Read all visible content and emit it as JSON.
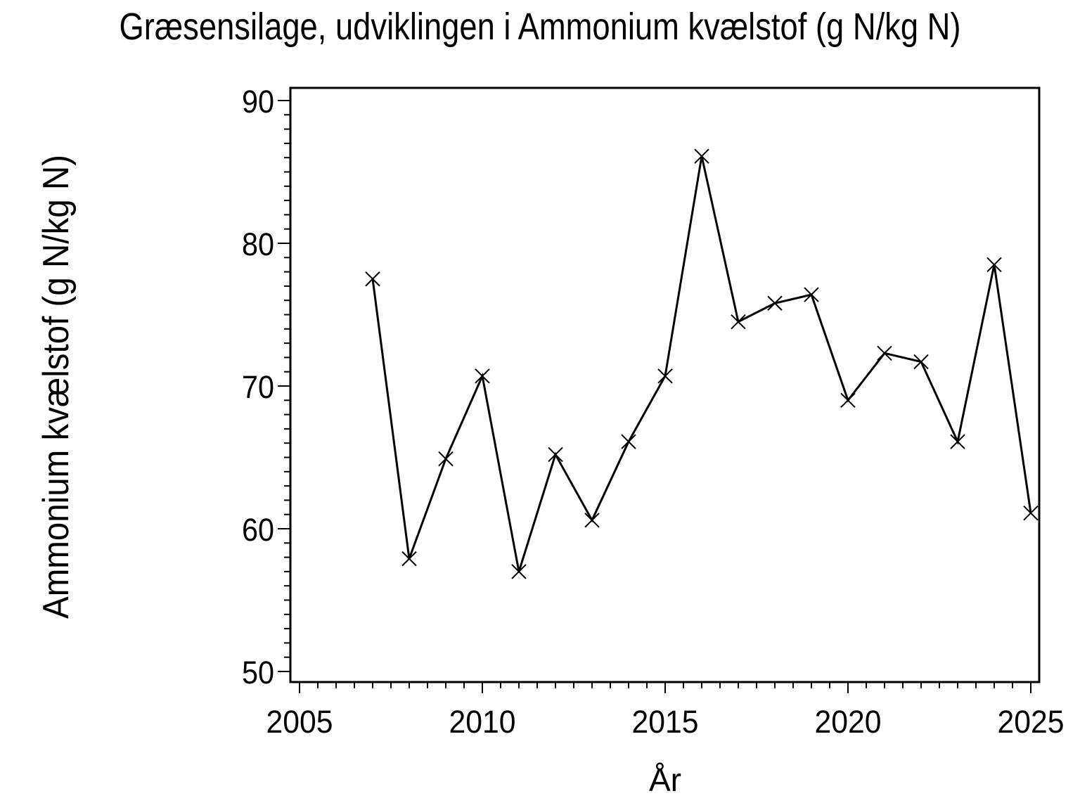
{
  "chart_data": {
    "type": "line",
    "title": "Græsensilage, udviklingen i Ammonium kvælstof (g N/kg N)",
    "xlabel": "År",
    "ylabel": "Ammonium kvælstof (g N/kg N)",
    "series_name": "Ammonium kvælstof",
    "x": [
      2007,
      2008,
      2009,
      2010,
      2011,
      2012,
      2013,
      2014,
      2015,
      2016,
      2017,
      2018,
      2019,
      2020,
      2021,
      2022,
      2023,
      2024,
      2025
    ],
    "values": [
      77.5,
      57.9,
      64.9,
      70.7,
      57.0,
      65.2,
      60.6,
      66.1,
      70.7,
      86.1,
      74.5,
      75.8,
      76.4,
      69.0,
      72.3,
      71.7,
      66.1,
      78.5,
      61.1
    ],
    "x_ticks": [
      2005,
      2010,
      2015,
      2020,
      2025
    ],
    "y_ticks": [
      50,
      60,
      70,
      80,
      90
    ],
    "x_minor_step": 0.5,
    "y_minor_step": 1,
    "xlim": [
      2004.75,
      2025.25
    ],
    "ylim": [
      49.3,
      90.9
    ],
    "marker": "x",
    "line_color": "#000000",
    "text_color": "#000000",
    "background_color": "#ffffff",
    "grid": false,
    "legend": false
  }
}
